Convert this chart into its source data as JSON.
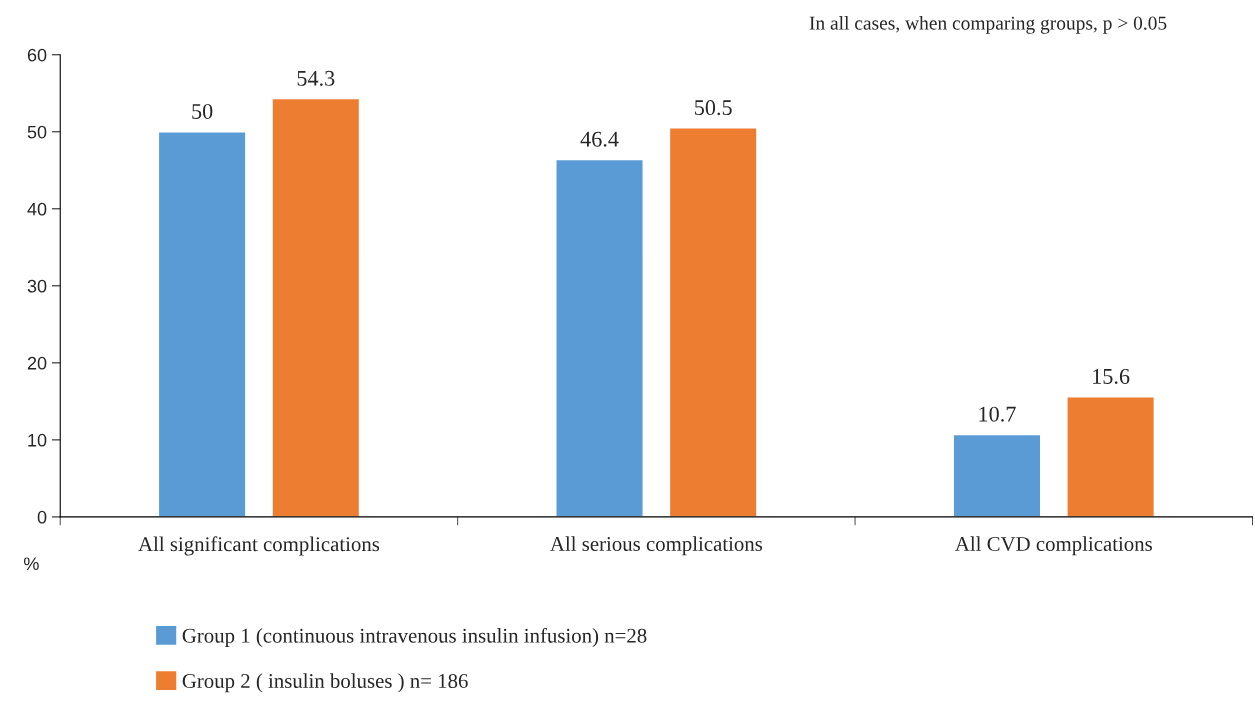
{
  "chart_data": {
    "type": "bar",
    "categories": [
      "All significant complications",
      "All serious complications",
      "All CVD complications"
    ],
    "series": [
      {
        "name": "Group 1 (continuous intravenous insulin infusion) n=28",
        "color": "#5b9bd5",
        "values": [
          50,
          46.4,
          10.7
        ]
      },
      {
        "name": "Group 2 ( insulin boluses ) n= 186",
        "color": "#ed7d31",
        "values": [
          54.3,
          50.5,
          15.6
        ]
      }
    ],
    "ylabel": "%",
    "ylim": [
      0,
      60
    ],
    "yticks": [
      0,
      10,
      20,
      30,
      40,
      50,
      60
    ],
    "data_labels": true,
    "grid": false,
    "legend": "bottom",
    "annotations": [
      "In all cases, when comparing groups, p > 0.05"
    ]
  }
}
